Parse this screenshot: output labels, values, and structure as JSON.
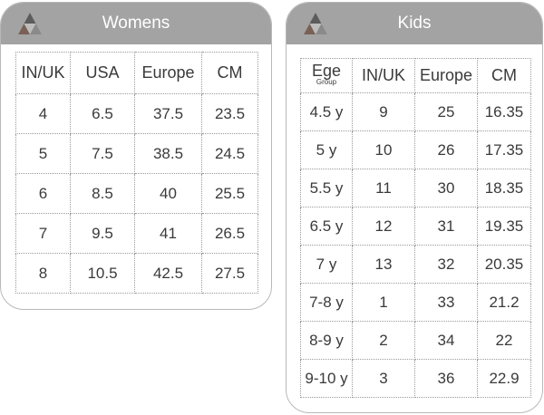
{
  "womens": {
    "title": "Womens",
    "headers": [
      "IN/UK",
      "USA",
      "Europe",
      "CM"
    ],
    "rows": [
      [
        "4",
        "6.5",
        "37.5",
        "23.5"
      ],
      [
        "5",
        "7.5",
        "38.5",
        "24.5"
      ],
      [
        "6",
        "8.5",
        "40",
        "25.5"
      ],
      [
        "7",
        "9.5",
        "41",
        "26.5"
      ],
      [
        "8",
        "10.5",
        "42.5",
        "27.5"
      ]
    ]
  },
  "kids": {
    "title": "Kids",
    "header_age": "Ege",
    "header_age_sub": "Group",
    "headers": [
      "IN/UK",
      "Europe",
      "CM"
    ],
    "rows": [
      [
        "4.5 y",
        "9",
        "25",
        "16.35"
      ],
      [
        "5 y",
        "10",
        "26",
        "17.35"
      ],
      [
        "5.5 y",
        "11",
        "30",
        "18.35"
      ],
      [
        "6.5 y",
        "12",
        "31",
        "19.35"
      ],
      [
        "7 y",
        "13",
        "32",
        "20.35"
      ],
      [
        "7-8 y",
        "1",
        "33",
        "21.2"
      ],
      [
        "8-9 y",
        "2",
        "34",
        "22"
      ],
      [
        "9-10 y",
        "3",
        "36",
        "22.9"
      ]
    ]
  },
  "colors": {
    "header_bg": "#a3a3a3",
    "logo_light": "#bdbdbd",
    "logo_dark": "#5c5c5c",
    "logo_brown": "#7a6155"
  },
  "icons": {
    "logo": "triangle-logo-icon"
  }
}
